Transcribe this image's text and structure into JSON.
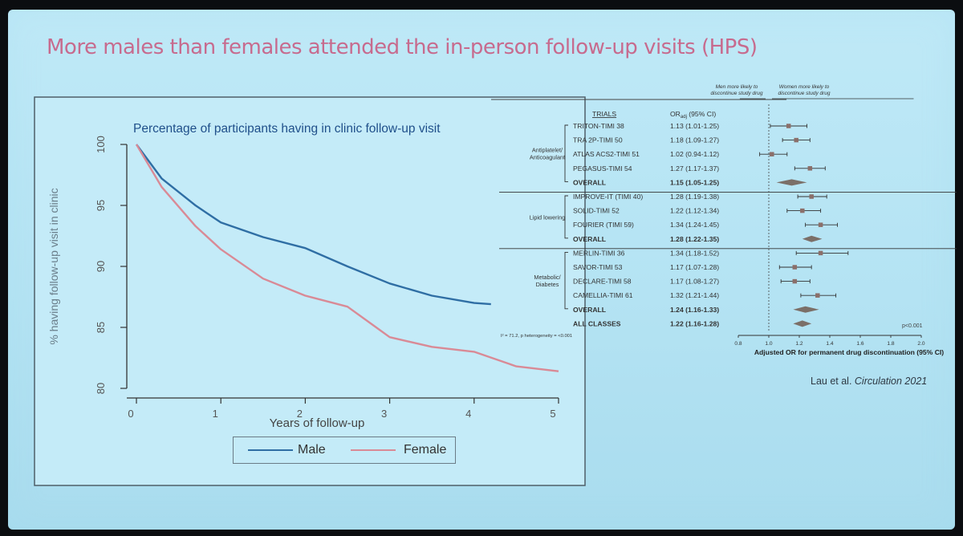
{
  "slide": {
    "title": "More males than females attended the in-person follow-up visits (HPS)",
    "citation_prefix": "Lau et al. ",
    "citation_journal": "Circulation 2021"
  },
  "chart_data": [
    {
      "type": "line",
      "title": "Percentage of participants having in clinic follow-up visit",
      "xlabel": "Years of follow-up",
      "ylabel": "% having follow-up visit in clinic",
      "xlim": [
        0,
        5
      ],
      "ylim": [
        80,
        100
      ],
      "xticks": [
        "0",
        "1",
        "2",
        "3",
        "4",
        "5"
      ],
      "yticks": [
        "80",
        "85",
        "90",
        "95",
        "100"
      ],
      "grid": false,
      "legend_position": "bottom-center",
      "series": [
        {
          "name": "Male",
          "color": "#2f6ea4",
          "x": [
            0,
            0.3,
            0.7,
            1.0,
            1.5,
            2.0,
            2.5,
            3.0,
            3.5,
            4.0,
            4.2
          ],
          "y": [
            100,
            97.2,
            95.0,
            93.6,
            92.4,
            91.5,
            90.0,
            88.6,
            87.6,
            87.0,
            86.9
          ]
        },
        {
          "name": "Female",
          "color": "#d98a96",
          "x": [
            0,
            0.3,
            0.7,
            1.0,
            1.5,
            2.0,
            2.5,
            2.8,
            3.0,
            3.5,
            4.0,
            4.5,
            5.0
          ],
          "y": [
            100,
            96.5,
            93.3,
            91.4,
            89.0,
            87.6,
            86.7,
            85.2,
            84.2,
            83.4,
            83.0,
            81.8,
            81.4
          ]
        }
      ]
    },
    {
      "type": "forest",
      "header_trials": "TRIALS",
      "header_or": "OR",
      "header_or_sub": "adj",
      "header_or_suffix": " (95% CI)",
      "label_left": [
        "Men more likely to",
        "discontinue study drug"
      ],
      "label_right": [
        "Women more likely to",
        "discontinue study drug"
      ],
      "xlabel": "Adjusted OR for permanent drug discontinuation (95% CI)",
      "xlim": [
        0.8,
        2.0
      ],
      "xticks": [
        "0.8",
        "1.0",
        "1.2",
        "1.4",
        "1.6",
        "1.8",
        "2.0"
      ],
      "heterogeneity": "I² = 71.2, p heterogeneity = <0.001",
      "p_value": "p<0.001",
      "groups": [
        {
          "name": [
            "Antiplatelet/",
            "Anticoagulant"
          ],
          "rows": [
            0,
            4
          ]
        },
        {
          "name": [
            "Lipid lowering"
          ],
          "rows": [
            5,
            8
          ]
        },
        {
          "name": [
            "Metabolic/",
            "Diabetes"
          ],
          "rows": [
            9,
            13
          ]
        }
      ],
      "rows": [
        {
          "label": "TRITON-TIMI 38",
          "ci": "1.13 (1.01-1.25)",
          "or": 1.13,
          "lo": 1.01,
          "hi": 1.25,
          "kind": "trial"
        },
        {
          "label": "TRA 2P-TIMI 50",
          "ci": "1.18 (1.09-1.27)",
          "or": 1.18,
          "lo": 1.09,
          "hi": 1.27,
          "kind": "trial"
        },
        {
          "label": "ATLAS ACS2-TIMI 51",
          "ci": "1.02 (0.94-1.12)",
          "or": 1.02,
          "lo": 0.94,
          "hi": 1.12,
          "kind": "trial"
        },
        {
          "label": "PEGASUS-TIMI 54",
          "ci": "1.27 (1.17-1.37)",
          "or": 1.27,
          "lo": 1.17,
          "hi": 1.37,
          "kind": "trial"
        },
        {
          "label": "OVERALL",
          "ci": "1.15 (1.05-1.25)",
          "or": 1.15,
          "lo": 1.05,
          "hi": 1.25,
          "kind": "overall"
        },
        {
          "label": "IMPROVE-IT (TIMI 40)",
          "ci": "1.28 (1.19-1.38)",
          "or": 1.28,
          "lo": 1.19,
          "hi": 1.38,
          "kind": "trial"
        },
        {
          "label": "SOLID-TIMI 52",
          "ci": "1.22 (1.12-1.34)",
          "or": 1.22,
          "lo": 1.12,
          "hi": 1.34,
          "kind": "trial"
        },
        {
          "label": "FOURIER (TIMI 59)",
          "ci": "1.34 (1.24-1.45)",
          "or": 1.34,
          "lo": 1.24,
          "hi": 1.45,
          "kind": "trial"
        },
        {
          "label": "OVERALL",
          "ci": "1.28 (1.22-1.35)",
          "or": 1.28,
          "lo": 1.22,
          "hi": 1.35,
          "kind": "overall"
        },
        {
          "label": "MERLIN-TIMI 36",
          "ci": "1.34 (1.18-1.52)",
          "or": 1.34,
          "lo": 1.18,
          "hi": 1.52,
          "kind": "trial"
        },
        {
          "label": "SAVOR-TIMI 53",
          "ci": "1.17 (1.07-1.28)",
          "or": 1.17,
          "lo": 1.07,
          "hi": 1.28,
          "kind": "trial"
        },
        {
          "label": "DECLARE-TIMI 58",
          "ci": "1.17 (1.08-1.27)",
          "or": 1.17,
          "lo": 1.08,
          "hi": 1.27,
          "kind": "trial"
        },
        {
          "label": "CAMELLIA-TIMI 61",
          "ci": "1.32 (1.21-1.44)",
          "or": 1.32,
          "lo": 1.21,
          "hi": 1.44,
          "kind": "trial"
        },
        {
          "label": "OVERALL",
          "ci": "1.24 (1.16-1.33)",
          "or": 1.24,
          "lo": 1.16,
          "hi": 1.33,
          "kind": "overall"
        },
        {
          "label": "ALL CLASSES",
          "ci": "1.22 (1.16-1.28)",
          "or": 1.22,
          "lo": 1.16,
          "hi": 1.28,
          "kind": "all"
        }
      ]
    }
  ]
}
